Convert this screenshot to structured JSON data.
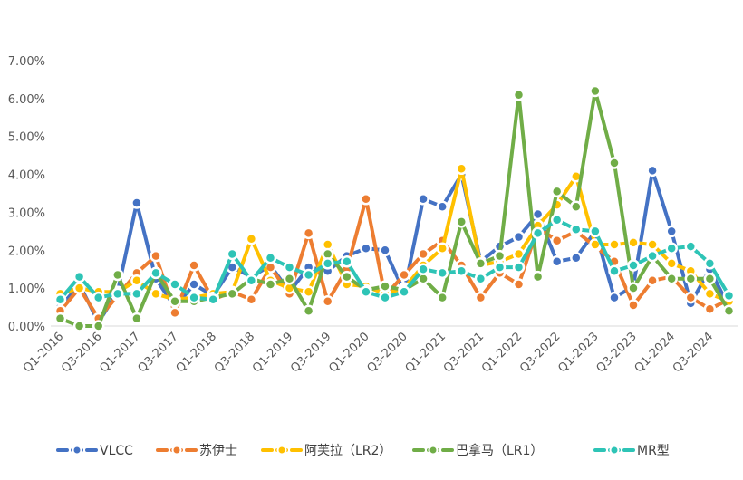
{
  "chart_data": {
    "type": "line",
    "title": "",
    "xlabel": "",
    "ylabel": "",
    "ylim": [
      0,
      0.07
    ],
    "yticks": [
      "0.00%",
      "1.00%",
      "2.00%",
      "3.00%",
      "4.00%",
      "5.00%",
      "6.00%",
      "7.00%"
    ],
    "grid": false,
    "legend_position": "bottom",
    "x": [
      "Q1-2016",
      "Q2-2016",
      "Q3-2016",
      "Q4-2016",
      "Q1-2017",
      "Q2-2017",
      "Q3-2017",
      "Q4-2017",
      "Q1-2018",
      "Q2-2018",
      "Q3-2018",
      "Q4-2018",
      "Q1-2019",
      "Q2-2019",
      "Q3-2019",
      "Q4-2019",
      "Q1-2020",
      "Q2-2020",
      "Q3-2020",
      "Q4-2020",
      "Q1-2021",
      "Q2-2021",
      "Q3-2021",
      "Q4-2021",
      "Q1-2022",
      "Q2-2022",
      "Q3-2022",
      "Q4-2022",
      "Q1-2023",
      "Q2-2023",
      "Q3-2023",
      "Q4-2023",
      "Q1-2024",
      "Q2-2024",
      "Q3-2024",
      "Q4-2024"
    ],
    "xtick_labels": [
      "Q1-2016",
      "Q3-2016",
      "Q1-2017",
      "Q3-2017",
      "Q1-2018",
      "Q3-2018",
      "Q1-2019",
      "Q3-2019",
      "Q1-2020",
      "Q3-2020",
      "Q1-2021",
      "Q3-2021",
      "Q1-2022",
      "Q3-2022",
      "Q1-2023",
      "Q3-2023",
      "Q1-2024",
      "Q3-2024"
    ],
    "series": [
      {
        "name": "VLCC",
        "color": "#4472C4",
        "values": [
          0.005,
          0.011,
          0.001,
          0.009,
          0.0325,
          0.0125,
          0.005,
          0.011,
          0.008,
          0.0155,
          0.013,
          0.016,
          0.009,
          0.0155,
          0.0145,
          0.0185,
          0.0205,
          0.02,
          0.009,
          0.0335,
          0.0315,
          0.04,
          0.017,
          0.021,
          0.0235,
          0.0295,
          0.017,
          0.018,
          0.025,
          0.0075,
          0.0105,
          0.041,
          0.025,
          0.006,
          0.015,
          0.005
        ]
      },
      {
        "name": "苏伊士",
        "color": "#ED7D31",
        "values": [
          0.004,
          0.01,
          0.002,
          0.008,
          0.014,
          0.0185,
          0.0035,
          0.016,
          0.007,
          0.009,
          0.007,
          0.0155,
          0.0085,
          0.0245,
          0.0065,
          0.015,
          0.0335,
          0.008,
          0.0135,
          0.019,
          0.0225,
          0.016,
          0.0075,
          0.014,
          0.011,
          0.026,
          0.0225,
          0.025,
          0.021,
          0.017,
          0.0055,
          0.012,
          0.013,
          0.0075,
          0.0045,
          0.007
        ]
      },
      {
        "name": "阿芙拉（LR2）",
        "color": "#FFC000",
        "values": [
          0.0085,
          0.01,
          0.009,
          0.009,
          0.012,
          0.0085,
          0.007,
          0.0075,
          0.0085,
          0.009,
          0.023,
          0.012,
          0.01,
          0.009,
          0.0215,
          0.011,
          0.0105,
          0.0085,
          0.01,
          0.016,
          0.0205,
          0.0415,
          0.016,
          0.017,
          0.019,
          0.0265,
          0.032,
          0.0395,
          0.0215,
          0.0215,
          0.022,
          0.0215,
          0.0165,
          0.0145,
          0.0085,
          0.0065
        ]
      },
      {
        "name": "巴拿马（LR1）",
        "color": "#70AD47",
        "values": [
          0.002,
          0.0,
          0.0,
          0.0135,
          0.002,
          0.014,
          0.0065,
          0.0065,
          0.0075,
          0.0085,
          0.0125,
          0.011,
          0.0125,
          0.004,
          0.019,
          0.013,
          0.0095,
          0.0105,
          0.0095,
          0.0125,
          0.0075,
          0.0275,
          0.0165,
          0.0185,
          0.061,
          0.013,
          0.0355,
          0.0315,
          0.062,
          0.043,
          0.01,
          0.0185,
          0.0125,
          0.0125,
          0.0125,
          0.004
        ]
      },
      {
        "name": "MR型",
        "color": "#2EC4B6",
        "values": [
          0.007,
          0.013,
          0.0075,
          0.0085,
          0.0085,
          0.014,
          0.011,
          0.0075,
          0.007,
          0.019,
          0.012,
          0.018,
          0.0155,
          0.0135,
          0.0165,
          0.017,
          0.009,
          0.0075,
          0.009,
          0.015,
          0.014,
          0.0145,
          0.0125,
          0.0155,
          0.0155,
          0.0245,
          0.028,
          0.0255,
          0.025,
          0.0145,
          0.016,
          0.0185,
          0.0205,
          0.021,
          0.0165,
          0.008
        ]
      }
    ]
  }
}
